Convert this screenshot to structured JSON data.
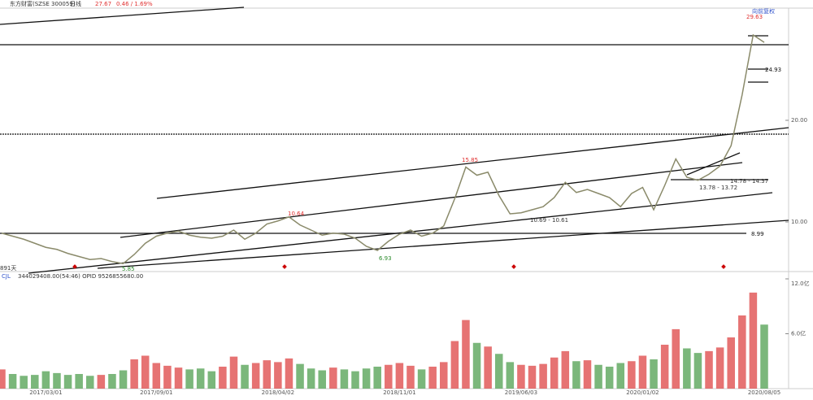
{
  "header": {
    "name": "东方财富(SZSE 300059)",
    "period": "日线",
    "price": "27.67",
    "change": "0.46 / 1.69%",
    "adjust": "向前复权"
  },
  "chart_data": [
    {
      "type": "line",
      "ylim": [
        5.44,
        31.04
      ],
      "yticks": [
        {
          "value": 10,
          "label": "10.00"
        },
        {
          "value": 20,
          "label": "20.00"
        }
      ],
      "categories": [
        null,
        null,
        null,
        null,
        "2017/03/01",
        null,
        null,
        null,
        null,
        null,
        null,
        null,
        null,
        null,
        "2017/09/01",
        null,
        null,
        null,
        null,
        null,
        null,
        null,
        null,
        null,
        null,
        "2018/04/02",
        null,
        null,
        null,
        null,
        null,
        null,
        null,
        null,
        null,
        null,
        "2018/11/01",
        null,
        null,
        null,
        null,
        null,
        null,
        null,
        null,
        null,
        null,
        "2019/06/03",
        null,
        null,
        null,
        null,
        null,
        null,
        null,
        null,
        null,
        null,
        "2020/01/02",
        null,
        null,
        null,
        null,
        null,
        null,
        null,
        null,
        null,
        null,
        "2020/08/05"
      ],
      "series": [
        {
          "color": "#8a8a6a",
          "values": [
            8.9,
            8.6,
            8.3,
            7.9,
            7.5,
            7.3,
            6.9,
            6.6,
            6.3,
            6.4,
            6.1,
            5.9,
            6.8,
            7.9,
            8.6,
            8.9,
            9.1,
            8.7,
            8.5,
            8.4,
            8.6,
            9.2,
            8.3,
            8.9,
            9.8,
            10.1,
            10.5,
            9.7,
            9.2,
            8.7,
            8.9,
            8.8,
            8.4,
            7.6,
            7.2,
            8.1,
            8.8,
            9.2,
            8.6,
            8.9,
            9.6,
            12.3,
            15.4,
            14.6,
            14.9,
            12.6,
            10.8,
            10.9,
            11.2,
            11.5,
            12.4,
            13.9,
            12.9,
            13.2,
            12.8,
            12.4,
            11.5,
            12.8,
            13.4,
            11.2,
            13.6,
            16.2,
            14.4,
            14.1,
            14.7,
            15.5,
            17.5,
            22.5,
            28.4,
            27.67
          ]
        }
      ],
      "annotations": [
        "29.63",
        "24.93",
        "15.85",
        "10.64",
        "5.85",
        "6.93",
        "14.78 - 14.37",
        "13.78 - 13.72",
        "10.69 - 10.61",
        "8.99",
        "891天"
      ]
    },
    {
      "type": "bar",
      "title": "CJL",
      "subtitle": "344029408.00(54:46)   OPID 9526855680.00",
      "ylim": [
        0,
        12
      ],
      "yticks": [
        {
          "value": 6,
          "label": "6.0亿"
        },
        {
          "value": 12,
          "label": "12.0亿"
        }
      ],
      "up_color": "#e05050",
      "down_color": "#5aa55a",
      "values": [
        2.1,
        1.6,
        1.4,
        1.5,
        1.9,
        1.7,
        1.5,
        1.6,
        1.4,
        1.5,
        1.6,
        2.0,
        3.2,
        3.6,
        2.8,
        2.5,
        2.3,
        2.1,
        2.2,
        1.9,
        2.4,
        3.5,
        2.6,
        2.8,
        3.1,
        2.9,
        3.3,
        2.7,
        2.2,
        2.0,
        2.3,
        2.1,
        1.9,
        2.2,
        2.4,
        2.6,
        2.8,
        2.5,
        2.1,
        2.4,
        2.9,
        5.2,
        7.5,
        5.0,
        4.6,
        3.8,
        2.9,
        2.6,
        2.5,
        2.7,
        3.4,
        4.1,
        3.0,
        3.1,
        2.6,
        2.4,
        2.8,
        3.0,
        3.6,
        3.2,
        4.8,
        6.5,
        4.4,
        3.9,
        4.1,
        4.5,
        5.6,
        8.0,
        10.5,
        7.0
      ]
    }
  ]
}
